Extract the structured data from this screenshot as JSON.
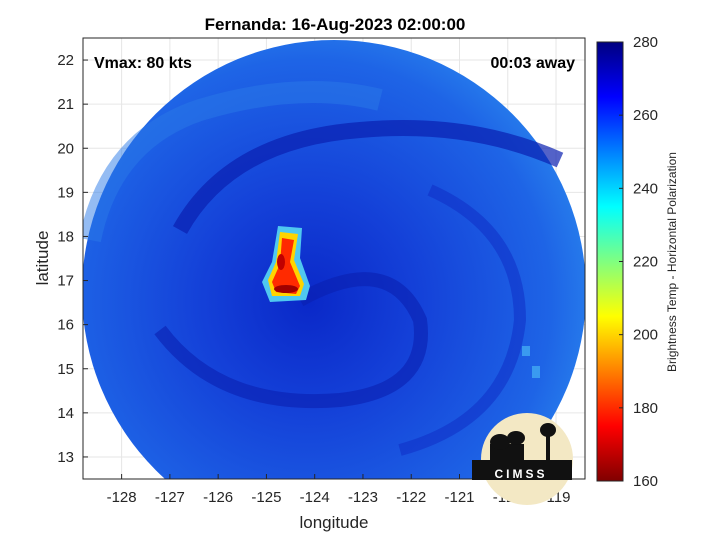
{
  "chart_data": {
    "type": "heatmap",
    "title": "Fernanda: 16-Aug-2023 02:00:00",
    "annotations": {
      "vmax": "Vmax: 80 kts",
      "time_away": "00:03 away"
    },
    "xlabel": "longitude",
    "ylabel": "latitude",
    "xlim": [
      -128.8,
      -118.4
    ],
    "ylim": [
      12.5,
      22.5
    ],
    "x_ticks": [
      -128,
      -127,
      -126,
      -125,
      -124,
      -123,
      -122,
      -121,
      -120,
      -119
    ],
    "y_ticks": [
      13,
      14,
      15,
      16,
      17,
      18,
      19,
      20,
      21,
      22
    ],
    "grid": true,
    "storm_center": {
      "lon": -123.8,
      "lat": 16.5
    },
    "colorbar": {
      "label": "Brightness Temp - Horizontal Polarization",
      "range": [
        160,
        280
      ],
      "ticks": [
        160,
        180,
        200,
        220,
        240,
        260,
        280
      ],
      "colormap": "jet"
    },
    "features": [
      {
        "name": "eyewall convection",
        "min_value": 165,
        "lon": [
          -125.2,
          -124.6
        ],
        "lat": [
          16.8,
          18.1
        ]
      },
      {
        "name": "swath background",
        "value": 255,
        "center_lon": -123.7,
        "center_lat": 17.2
      }
    ],
    "logo": {
      "text": "CIMSS"
    }
  }
}
